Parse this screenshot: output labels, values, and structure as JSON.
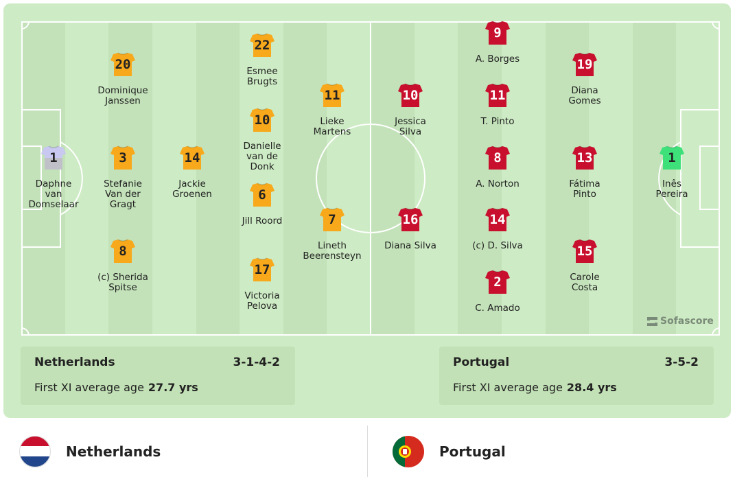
{
  "colors": {
    "home_kit": "#f7a81b",
    "away_kit": "#c8102e",
    "home_gk": "#c0c0c8",
    "away_gk": "#3ee07a",
    "pitch": "#cdebc4"
  },
  "home": {
    "name": "Netherlands",
    "formation": "3-1-4-2",
    "age_label": "First XI average age",
    "age_value": "27.7 yrs",
    "players": [
      {
        "num": "1",
        "name": "Daphne\nvan\nDomselaar",
        "gk": true
      },
      {
        "num": "20",
        "name": "Dominique\nJanssen"
      },
      {
        "num": "3",
        "name": "Stefanie\nVan der\nGragt"
      },
      {
        "num": "8",
        "name": "(c) Sherida\nSpitse"
      },
      {
        "num": "14",
        "name": "Jackie\nGroenen"
      },
      {
        "num": "22",
        "name": "Esmee\nBrugts"
      },
      {
        "num": "10",
        "name": "Danielle\nvan de\nDonk"
      },
      {
        "num": "6",
        "name": "Jill Roord"
      },
      {
        "num": "17",
        "name": "Victoria\nPelova"
      },
      {
        "num": "11",
        "name": "Lieke\nMartens"
      },
      {
        "num": "7",
        "name": "Lineth\nBeerensteyn"
      }
    ]
  },
  "away": {
    "name": "Portugal",
    "formation": "3-5-2",
    "age_label": "First XI average age",
    "age_value": "28.4 yrs",
    "players": [
      {
        "num": "10",
        "name": "Jessica\nSilva"
      },
      {
        "num": "16",
        "name": "Diana Silva"
      },
      {
        "num": "9",
        "name": "A. Borges"
      },
      {
        "num": "11",
        "name": "T. Pinto"
      },
      {
        "num": "8",
        "name": "A. Norton"
      },
      {
        "num": "14",
        "name": "(c) D. Silva"
      },
      {
        "num": "2",
        "name": "C. Amado"
      },
      {
        "num": "19",
        "name": "Diana\nGomes"
      },
      {
        "num": "13",
        "name": "Fátima\nPinto"
      },
      {
        "num": "15",
        "name": "Carole\nCosta"
      },
      {
        "num": "1",
        "name": "Inês\nPereira",
        "gk": true
      }
    ]
  },
  "watermark": "Sofascore"
}
